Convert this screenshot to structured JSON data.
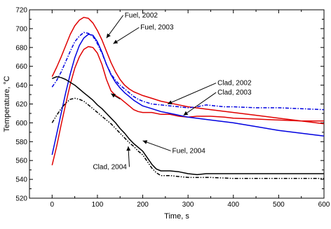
{
  "chart_data": {
    "type": "line",
    "xlabel": "Time, s",
    "ylabel": "Temperature, °C",
    "xlim": [
      -50,
      600
    ],
    "ylim": [
      520,
      720
    ],
    "xticks": [
      "0",
      "100",
      "200",
      "300",
      "400",
      "500",
      "600"
    ],
    "yticks": [
      "520",
      "540",
      "560",
      "580",
      "600",
      "620",
      "640",
      "660",
      "680",
      "700",
      "720"
    ],
    "grid": false,
    "series": [
      {
        "name": "Fuel, 2002",
        "color": "#e00000",
        "dash": "solid",
        "points": [
          [
            0,
            649
          ],
          [
            10,
            659
          ],
          [
            20,
            670
          ],
          [
            30,
            682
          ],
          [
            40,
            694
          ],
          [
            50,
            703
          ],
          [
            60,
            709
          ],
          [
            70,
            712
          ],
          [
            80,
            711
          ],
          [
            90,
            706
          ],
          [
            100,
            698
          ],
          [
            110,
            688
          ],
          [
            120,
            676
          ],
          [
            130,
            664
          ],
          [
            140,
            654
          ],
          [
            150,
            646
          ],
          [
            160,
            640
          ],
          [
            170,
            636
          ],
          [
            180,
            633
          ],
          [
            190,
            631
          ],
          [
            200,
            629
          ],
          [
            220,
            626
          ],
          [
            240,
            623
          ],
          [
            260,
            621
          ],
          [
            280,
            619
          ],
          [
            300,
            617
          ],
          [
            350,
            614
          ],
          [
            400,
            611
          ],
          [
            450,
            608
          ],
          [
            500,
            605
          ],
          [
            550,
            602
          ],
          [
            600,
            599
          ]
        ]
      },
      {
        "name": "Fuel, 2003",
        "color": "#e00000",
        "dash": "solid",
        "points": [
          [
            0,
            555
          ],
          [
            10,
            575
          ],
          [
            20,
            598
          ],
          [
            30,
            620
          ],
          [
            40,
            641
          ],
          [
            50,
            658
          ],
          [
            60,
            670
          ],
          [
            70,
            678
          ],
          [
            80,
            681
          ],
          [
            90,
            680
          ],
          [
            100,
            674
          ],
          [
            110,
            662
          ],
          [
            120,
            646
          ],
          [
            130,
            634
          ],
          [
            140,
            629
          ],
          [
            150,
            626
          ],
          [
            160,
            622
          ],
          [
            170,
            618
          ],
          [
            180,
            614
          ],
          [
            190,
            612
          ],
          [
            200,
            611
          ],
          [
            220,
            611
          ],
          [
            240,
            609
          ],
          [
            260,
            609
          ],
          [
            280,
            607
          ],
          [
            300,
            606
          ],
          [
            320,
            607
          ],
          [
            350,
            607
          ],
          [
            380,
            606
          ],
          [
            400,
            605
          ],
          [
            450,
            604
          ],
          [
            500,
            603
          ],
          [
            550,
            602
          ],
          [
            600,
            602
          ]
        ]
      },
      {
        "name": "Clad, 2002",
        "color": "#0000e0",
        "dash": "dashdot",
        "points": [
          [
            0,
            638
          ],
          [
            10,
            645
          ],
          [
            20,
            654
          ],
          [
            30,
            665
          ],
          [
            40,
            676
          ],
          [
            50,
            686
          ],
          [
            60,
            692
          ],
          [
            70,
            696
          ],
          [
            80,
            695
          ],
          [
            90,
            692
          ],
          [
            100,
            684
          ],
          [
            110,
            674
          ],
          [
            120,
            662
          ],
          [
            130,
            652
          ],
          [
            140,
            645
          ],
          [
            150,
            640
          ],
          [
            160,
            636
          ],
          [
            170,
            632
          ],
          [
            180,
            628
          ],
          [
            190,
            625
          ],
          [
            200,
            623
          ],
          [
            220,
            620
          ],
          [
            240,
            619
          ],
          [
            260,
            618
          ],
          [
            280,
            617
          ],
          [
            300,
            616
          ],
          [
            320,
            617
          ],
          [
            340,
            619
          ],
          [
            360,
            618
          ],
          [
            380,
            617
          ],
          [
            400,
            617
          ],
          [
            450,
            616
          ],
          [
            500,
            616
          ],
          [
            550,
            615
          ],
          [
            600,
            614
          ]
        ]
      },
      {
        "name": "Clad, 2003",
        "color": "#0000e0",
        "dash": "solid",
        "points": [
          [
            0,
            566
          ],
          [
            10,
            588
          ],
          [
            20,
            610
          ],
          [
            30,
            632
          ],
          [
            40,
            652
          ],
          [
            50,
            669
          ],
          [
            60,
            682
          ],
          [
            70,
            690
          ],
          [
            80,
            694
          ],
          [
            90,
            693
          ],
          [
            100,
            686
          ],
          [
            110,
            675
          ],
          [
            120,
            662
          ],
          [
            130,
            651
          ],
          [
            140,
            643
          ],
          [
            150,
            637
          ],
          [
            160,
            632
          ],
          [
            170,
            628
          ],
          [
            180,
            624
          ],
          [
            190,
            621
          ],
          [
            200,
            618
          ],
          [
            220,
            615
          ],
          [
            240,
            612
          ],
          [
            260,
            610
          ],
          [
            280,
            608
          ],
          [
            300,
            606
          ],
          [
            350,
            603
          ],
          [
            400,
            600
          ],
          [
            450,
            596
          ],
          [
            500,
            592
          ],
          [
            550,
            589
          ],
          [
            600,
            586
          ]
        ]
      },
      {
        "name": "Fuel, 2004",
        "color": "#000000",
        "dash": "solid",
        "points": [
          [
            0,
            647
          ],
          [
            10,
            649
          ],
          [
            20,
            648
          ],
          [
            30,
            646
          ],
          [
            40,
            643
          ],
          [
            50,
            640
          ],
          [
            60,
            636
          ],
          [
            70,
            632
          ],
          [
            80,
            628
          ],
          [
            90,
            624
          ],
          [
            100,
            619
          ],
          [
            110,
            615
          ],
          [
            120,
            610
          ],
          [
            130,
            605
          ],
          [
            140,
            600
          ],
          [
            150,
            594
          ],
          [
            160,
            589
          ],
          [
            170,
            583
          ],
          [
            180,
            578
          ],
          [
            190,
            574
          ],
          [
            200,
            570
          ],
          [
            210,
            563
          ],
          [
            220,
            556
          ],
          [
            230,
            551
          ],
          [
            240,
            549
          ],
          [
            260,
            549
          ],
          [
            280,
            548
          ],
          [
            300,
            546
          ],
          [
            320,
            545
          ],
          [
            340,
            546
          ],
          [
            360,
            546
          ],
          [
            380,
            546
          ],
          [
            400,
            546
          ],
          [
            450,
            546
          ],
          [
            500,
            546
          ],
          [
            550,
            546
          ],
          [
            600,
            546
          ]
        ]
      },
      {
        "name": "Clad, 2004",
        "color": "#000000",
        "dash": "dashdotdot",
        "points": [
          [
            0,
            600
          ],
          [
            10,
            608
          ],
          [
            20,
            615
          ],
          [
            30,
            621
          ],
          [
            40,
            625
          ],
          [
            50,
            626
          ],
          [
            60,
            625
          ],
          [
            70,
            623
          ],
          [
            80,
            619
          ],
          [
            90,
            615
          ],
          [
            100,
            611
          ],
          [
            110,
            607
          ],
          [
            120,
            603
          ],
          [
            130,
            599
          ],
          [
            140,
            594
          ],
          [
            150,
            589
          ],
          [
            160,
            584
          ],
          [
            170,
            579
          ],
          [
            180,
            575
          ],
          [
            190,
            570
          ],
          [
            200,
            566
          ],
          [
            210,
            559
          ],
          [
            220,
            552
          ],
          [
            230,
            547
          ],
          [
            240,
            544
          ],
          [
            260,
            544
          ],
          [
            280,
            543
          ],
          [
            300,
            542
          ],
          [
            350,
            542
          ],
          [
            400,
            541
          ],
          [
            450,
            541
          ],
          [
            500,
            541
          ],
          [
            550,
            541
          ],
          [
            600,
            541
          ]
        ]
      }
    ],
    "annotations": [
      {
        "text": "Fuel, 2002",
        "label_at": [
          160,
          712
        ],
        "arrow_to": [
          120,
          690
        ]
      },
      {
        "text": "Fuel, 2003",
        "label_at": [
          195,
          699
        ],
        "arrow_to": [
          135,
          684
        ]
      },
      {
        "text": "Clad, 2002",
        "label_at": [
          365,
          640
        ],
        "arrow_to": [
          255,
          620
        ]
      },
      {
        "text": "Clad, 2003",
        "label_at": [
          365,
          630
        ],
        "arrow_to": [
          290,
          608
        ]
      },
      {
        "text": "Fuel, 2004",
        "label_at": [
          265,
          568
        ],
        "arrow_to": [
          200,
          581
        ]
      },
      {
        "text": "Clad, 2004",
        "label_at": [
          90,
          551
        ],
        "arrow_to": [
          168,
          575
        ]
      },
      {
        "text": "",
        "label_at": [
          150,
          623
        ],
        "arrow_to": [
          130,
          631
        ]
      }
    ]
  }
}
